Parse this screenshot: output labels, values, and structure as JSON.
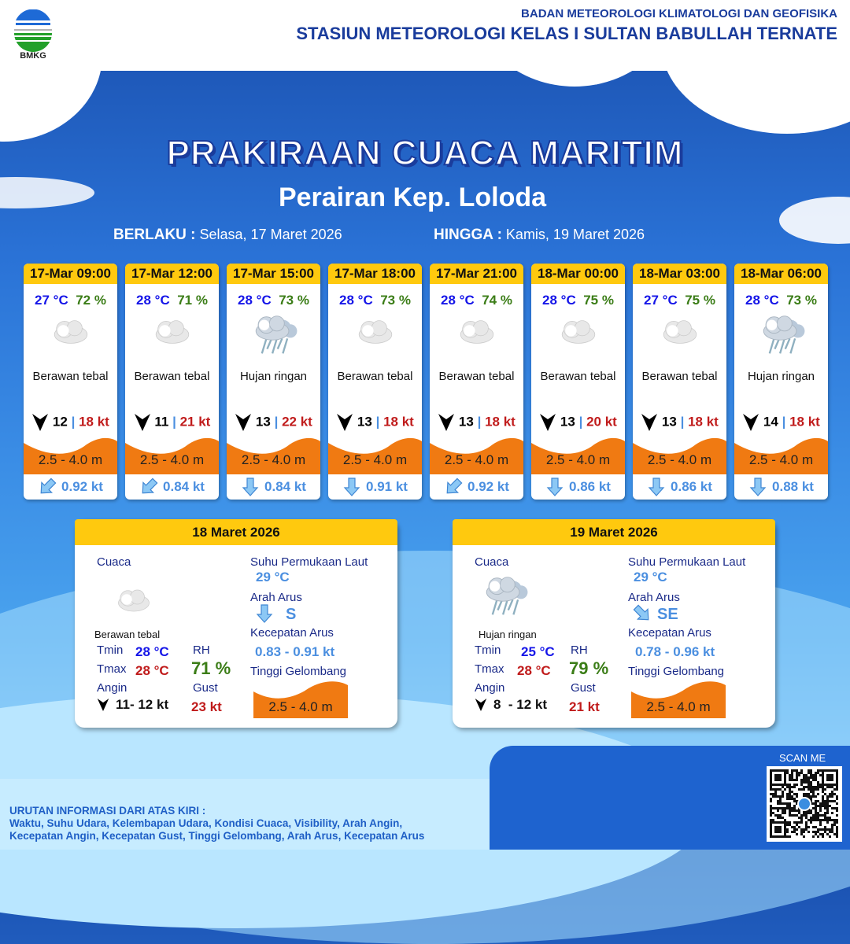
{
  "header": {
    "org": "BADAN METEOROLOGI KLIMATOLOGI DAN GEOFISIKA",
    "station": "STASIUN METEOROLOGI KELAS I SULTAN BABULLAH TERNATE",
    "logo_text": "BMKG"
  },
  "title": "PRAKIRAAN CUACA MARITIM",
  "subtitle": "Perairan Kep. Loloda",
  "validity": {
    "from_label": "BERLAKU :",
    "from": "Selasa, 17 Maret 2026",
    "to_label": "HINGGA :",
    "to": "Kamis, 19 Maret 2026"
  },
  "colors": {
    "header_yellow": "#ffc90e",
    "wave_orange": "#f07a12",
    "temp_blue": "#1515e8",
    "rh_green": "#3b7d17",
    "gust_red": "#c01b1b"
  },
  "forecasts": [
    {
      "time": "17-Mar 09:00",
      "temp": "27 °C",
      "rh": "72 %",
      "icon": "cloud-icon",
      "weather": "Berawan tebal",
      "wind": "12",
      "gust": "18 kt",
      "wave": "2.5 - 4.0 m",
      "current_dir": "SW",
      "current": "0.92 kt"
    },
    {
      "time": "17-Mar 12:00",
      "temp": "28 °C",
      "rh": "71 %",
      "icon": "cloud-icon",
      "weather": "Berawan tebal",
      "wind": "11",
      "gust": "21 kt",
      "wave": "2.5 - 4.0 m",
      "current_dir": "SW",
      "current": "0.84 kt"
    },
    {
      "time": "17-Mar 15:00",
      "temp": "28 °C",
      "rh": "73 %",
      "icon": "rain-icon",
      "weather": "Hujan ringan",
      "wind": "13",
      "gust": "22 kt",
      "wave": "2.5 - 4.0 m",
      "current_dir": "S",
      "current": "0.84 kt"
    },
    {
      "time": "17-Mar 18:00",
      "temp": "28 °C",
      "rh": "73 %",
      "icon": "cloud-icon",
      "weather": "Berawan tebal",
      "wind": "13",
      "gust": "18 kt",
      "wave": "2.5 - 4.0 m",
      "current_dir": "S",
      "current": "0.91 kt"
    },
    {
      "time": "17-Mar 21:00",
      "temp": "28 °C",
      "rh": "74 %",
      "icon": "cloud-icon",
      "weather": "Berawan tebal",
      "wind": "13",
      "gust": "18 kt",
      "wave": "2.5 - 4.0 m",
      "current_dir": "SW",
      "current": "0.92 kt"
    },
    {
      "time": "18-Mar 00:00",
      "temp": "28 °C",
      "rh": "75 %",
      "icon": "cloud-icon",
      "weather": "Berawan tebal",
      "wind": "13",
      "gust": "20 kt",
      "wave": "2.5 - 4.0 m",
      "current_dir": "S",
      "current": "0.86 kt"
    },
    {
      "time": "18-Mar 03:00",
      "temp": "27 °C",
      "rh": "75 %",
      "icon": "cloud-icon",
      "weather": "Berawan tebal",
      "wind": "13",
      "gust": "18 kt",
      "wave": "2.5 - 4.0 m",
      "current_dir": "S",
      "current": "0.86 kt"
    },
    {
      "time": "18-Mar 06:00",
      "temp": "28 °C",
      "rh": "73 %",
      "icon": "rain-icon",
      "weather": "Hujan ringan",
      "wind": "14",
      "gust": "18 kt",
      "wave": "2.5 - 4.0 m",
      "current_dir": "S",
      "current": "0.88 kt"
    }
  ],
  "labels": {
    "cuaca": "Cuaca",
    "sst": "Suhu Permukaan Laut",
    "arah_arus": "Arah Arus",
    "kec_arus": "Kecepatan Arus",
    "tinggi": "Tinggi Gelombang",
    "tmin": "Tmin",
    "tmax": "Tmax",
    "rh": "RH",
    "angin": "Angin",
    "gust": "Gust"
  },
  "daily": [
    {
      "date": "18 Maret 2026",
      "icon": "cloud-icon",
      "weather": "Berawan tebal",
      "tmin": "28 °C",
      "tmax": "28 °C",
      "rh": "71 %",
      "wind": "11- 12 kt",
      "gust": "23 kt",
      "sst": "29 °C",
      "current_dir": "S",
      "current_dir_code": "S",
      "current": "0.83 - 0.91 kt",
      "wave": "2.5 - 4.0 m"
    },
    {
      "date": "19 Maret 2026",
      "icon": "rain-icon",
      "weather": "Hujan ringan",
      "tmin": "25 °C",
      "tmax": "28 °C",
      "rh": "79 %",
      "wind": "8  - 12 kt",
      "gust": "21 kt",
      "sst": "29 °C",
      "current_dir": "SE",
      "current_dir_code": "SE",
      "current": "0.78 - 0.96 kt",
      "wave": "2.5 - 4.0 m"
    }
  ],
  "qr": {
    "label": "SCAN ME"
  },
  "footer": {
    "heading": "URUTAN INFORMASI DARI ATAS KIRI :",
    "line1": "Waktu, Suhu Udara, Kelembapan Udara, Kondisi Cuaca, Visibility, Arah Angin,",
    "line2": "Kecepatan Angin, Kecepatan Gust, Tinggi Gelombang, Arah Arus, Kecepatan Arus"
  }
}
